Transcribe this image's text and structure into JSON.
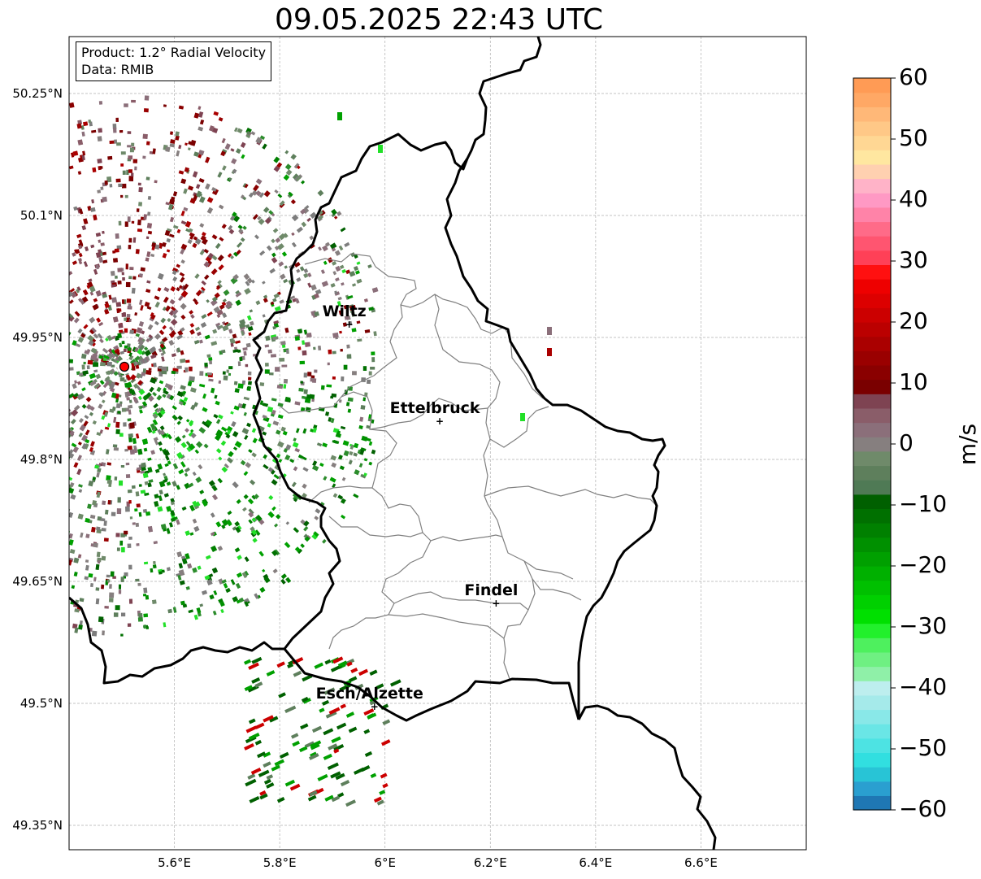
{
  "title": "09.05.2025 22:43 UTC",
  "info": {
    "product": "Product: 1.2° Radial Velocity",
    "source": "Data: RMIB"
  },
  "map": {
    "lon_range": [
      5.4,
      6.8
    ],
    "lat_range": [
      49.32,
      50.32
    ],
    "lon_ticks": [
      5.6,
      5.8,
      6.0,
      6.2,
      6.4,
      6.6
    ],
    "lon_tick_labels": [
      "5.6°E",
      "5.8°E",
      "6°E",
      "6.2°E",
      "6.4°E",
      "6.6°E"
    ],
    "lat_ticks": [
      50.25,
      50.1,
      49.95,
      49.8,
      49.65,
      49.5,
      49.35
    ],
    "lat_tick_labels": [
      "50.25°N",
      "50.1°N",
      "49.95°N",
      "49.8°N",
      "49.65°N",
      "49.5°N",
      "49.35°N"
    ],
    "grid": true,
    "radar_site": {
      "lon": 5.505,
      "lat": 49.914,
      "marker_color": "#ff0000"
    },
    "cities": [
      {
        "name": "Wiltz",
        "lon": 5.932,
        "lat": 49.966
      },
      {
        "name": "Ettelbruck",
        "lon": 6.104,
        "lat": 49.847
      },
      {
        "name": "Findel",
        "lon": 6.211,
        "lat": 49.623
      },
      {
        "name": "Esch/Alzette",
        "lon": 5.98,
        "lat": 49.496
      }
    ]
  },
  "colorbar": {
    "range": [
      -60,
      60
    ],
    "ticks": [
      60,
      50,
      40,
      30,
      20,
      10,
      0,
      -10,
      -20,
      -30,
      -40,
      -50,
      -60
    ],
    "tick_labels": [
      "60",
      "50",
      "40",
      "30",
      "20",
      "10",
      "0",
      "−10",
      "−20",
      "−30",
      "−40",
      "−50",
      "−60"
    ],
    "unit": "m/s",
    "colors": [
      "#1f77b4",
      "#2a9fd0",
      "#28c4d6",
      "#31dfe0",
      "#4de3e3",
      "#6ae6e6",
      "#89e8e8",
      "#a5eaea",
      "#bdeeee",
      "#8ff0a8",
      "#6ff082",
      "#4ef05e",
      "#22f02c",
      "#00e000",
      "#00d000",
      "#00c000",
      "#00b000",
      "#00a000",
      "#009000",
      "#008000",
      "#007000",
      "#006000",
      "#4f7a55",
      "#5e7f5c",
      "#6f8a6a",
      "#867f7f",
      "#8b6f7a",
      "#8a5d69",
      "#7e4352",
      "#7a0000",
      "#8a0000",
      "#9a0000",
      "#aa0000",
      "#bb0000",
      "#cc0000",
      "#dd0000",
      "#ee0000",
      "#ff1010",
      "#ff4057",
      "#ff5570",
      "#ff6b88",
      "#ff83a8",
      "#ff99c4",
      "#ffb3c8",
      "#ffd0b0",
      "#ffe7a0",
      "#ffd794",
      "#ffc887",
      "#ffb878",
      "#ffa865",
      "#ff9b55"
    ]
  }
}
